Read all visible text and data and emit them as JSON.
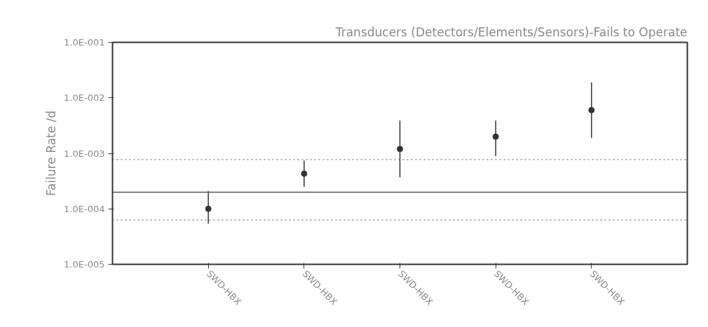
{
  "chart_data": {
    "type": "scatter",
    "title": "Transducers (Detectors/Elements/Sensors)-Fails to Operate",
    "ylabel": "Failure Rate /d",
    "categories": [
      "SWD-HBX",
      "SWD-HBX",
      "SWD-HBX",
      "SWD-HBX",
      "SWD-HBX"
    ],
    "series": [
      {
        "color": "#333333",
        "values": [
          0.0001,
          0.00043,
          0.0012,
          0.002,
          0.006
        ],
        "errors": [
          [
            5.4e-05,
            0.00021
          ],
          [
            0.00025,
            0.00074
          ],
          [
            0.00037,
            0.0039
          ],
          [
            0.0009,
            0.0039
          ],
          [
            0.0019,
            0.019
          ]
        ]
      }
    ],
    "log": "y",
    "ylim": [
      1e-05,
      0.1
    ],
    "yticks": [
      {
        "value": 1e-05,
        "label": "1.0E-005"
      },
      {
        "value": 0.0001,
        "label": "1.0E-004"
      },
      {
        "value": 0.001,
        "label": "1.0E-003"
      },
      {
        "value": 0.01,
        "label": "1.0E-002"
      },
      {
        "value": 0.1,
        "label": "1.0E-001"
      }
    ],
    "ref_lines": [
      {
        "axis": "y",
        "value": 0.0002,
        "line_style": "solid"
      },
      {
        "axis": "y",
        "value": 0.00077,
        "line_style": "dotted"
      },
      {
        "axis": "y",
        "value": 6.3e-05,
        "line_style": "dotted"
      }
    ],
    "grid": false,
    "marker": "circle"
  }
}
